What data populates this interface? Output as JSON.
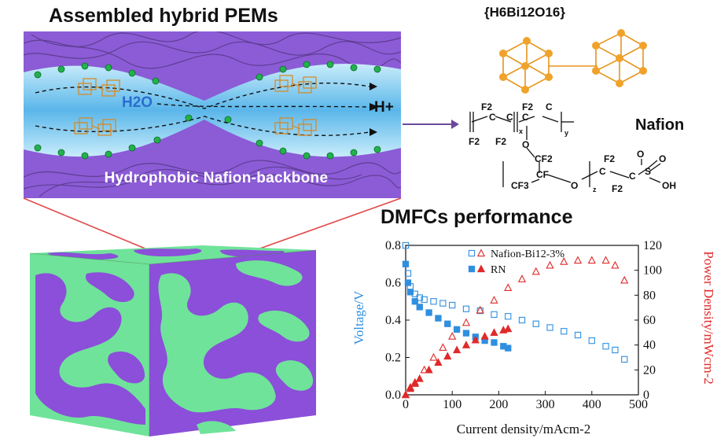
{
  "heading": "Assembled hybrid PEMs",
  "panel": {
    "water_label": "H2O",
    "proton_label": "H+",
    "backbone_label": "Hydrophobic Nafion-backbone"
  },
  "cluster": {
    "formula": "{H6Bi12O16}"
  },
  "nafion": {
    "label": "Nafion",
    "atoms": [
      "F2",
      "C",
      "C",
      "F2",
      "C",
      "F2",
      "C",
      "O",
      "CF2",
      "CF",
      "CF3",
      "O",
      "F2",
      "C",
      "C",
      "S",
      "O",
      "O",
      "OH",
      "F2",
      "F2",
      "x",
      "y",
      "z"
    ]
  },
  "cube": {},
  "colors": {
    "membrane_purple": "#8b4fd9",
    "hydrophilic_green": "#6fe39a",
    "channel_blue": "#9fd6f0",
    "connector_red": "#e04a4a",
    "left_axis_blue": "#2f8fe0",
    "right_axis_red": "#e02a2a"
  },
  "chart_title": "DMFCs performance",
  "chart_data": {
    "type": "line",
    "xlabel": "Current density/mAcm-2",
    "ylabel_left": "Voltage/V",
    "ylabel_right": "Power Density/mWcm-2",
    "xlim": [
      0,
      500
    ],
    "ylim_left": [
      0.0,
      0.8
    ],
    "ylim_right": [
      0,
      120
    ],
    "x_ticks": [
      0,
      100,
      200,
      300,
      400,
      500
    ],
    "y_ticks_left": [
      "0.0",
      "0.2",
      "0.4",
      "0.6",
      "0.8"
    ],
    "y_ticks_right": [
      0,
      20,
      40,
      60,
      80,
      100,
      120
    ],
    "legend_position": "top",
    "series": [
      {
        "name": "Nafion-Bi12-3%",
        "axis": "left",
        "marker": "open-square",
        "color": "#2f8fe0",
        "x": [
          0,
          5,
          10,
          20,
          30,
          40,
          60,
          80,
          100,
          130,
          160,
          190,
          220,
          250,
          280,
          310,
          340,
          370,
          400,
          430,
          450,
          470
        ],
        "y": [
          0.8,
          0.65,
          0.58,
          0.54,
          0.52,
          0.51,
          0.5,
          0.49,
          0.48,
          0.46,
          0.45,
          0.43,
          0.42,
          0.4,
          0.38,
          0.36,
          0.34,
          0.32,
          0.29,
          0.26,
          0.24,
          0.19
        ]
      },
      {
        "name": "Nafion-Bi12-3%",
        "axis": "right",
        "marker": "open-triangle",
        "color": "#e02a2a",
        "x": [
          0,
          10,
          20,
          40,
          60,
          80,
          100,
          130,
          160,
          190,
          220,
          250,
          280,
          310,
          340,
          370,
          400,
          430,
          450,
          470
        ],
        "y": [
          0,
          6,
          10,
          20,
          30,
          38,
          47,
          58,
          68,
          76,
          86,
          93,
          99,
          104,
          107,
          108,
          108,
          108,
          104,
          92
        ]
      },
      {
        "name": "RN",
        "axis": "left",
        "marker": "filled-square",
        "color": "#2f8fe0",
        "x": [
          0,
          5,
          10,
          20,
          30,
          50,
          70,
          90,
          110,
          130,
          150,
          170,
          190,
          210,
          220
        ],
        "y": [
          0.7,
          0.6,
          0.55,
          0.5,
          0.47,
          0.44,
          0.41,
          0.38,
          0.35,
          0.33,
          0.31,
          0.29,
          0.28,
          0.26,
          0.25
        ]
      },
      {
        "name": "RN",
        "axis": "right",
        "marker": "filled-triangle",
        "color": "#e02a2a",
        "x": [
          0,
          10,
          20,
          30,
          50,
          70,
          90,
          110,
          130,
          150,
          170,
          190,
          210,
          220
        ],
        "y": [
          0,
          5,
          9,
          13,
          20,
          26,
          31,
          36,
          40,
          44,
          47,
          50,
          52,
          53
        ]
      }
    ]
  }
}
